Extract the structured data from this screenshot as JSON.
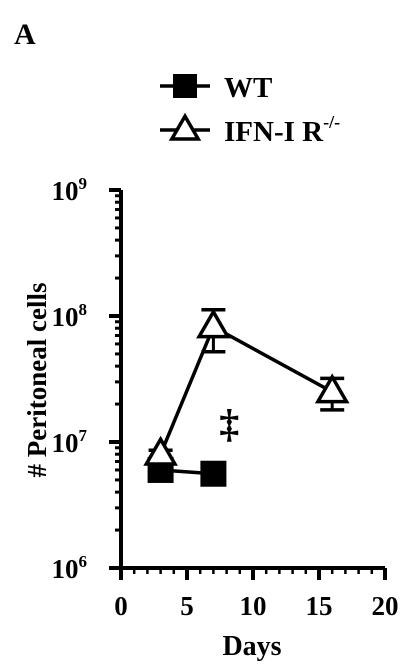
{
  "panel_label": "A",
  "chart_data": {
    "type": "line",
    "xlabel": "Days",
    "ylabel": "# Peritoneal cells",
    "xlim": [
      0,
      20
    ],
    "ylim": [
      1000000,
      1000000000
    ],
    "y_scale": "log",
    "x_ticks": [
      0,
      5,
      10,
      15,
      20
    ],
    "y_ticks": [
      {
        "value": 1000000,
        "base": "10",
        "exp": "6"
      },
      {
        "value": 10000000,
        "base": "10",
        "exp": "7"
      },
      {
        "value": 100000000,
        "base": "10",
        "exp": "8"
      },
      {
        "value": 1000000000,
        "base": "10",
        "exp": "9"
      }
    ],
    "legend_position": "top",
    "grid": false,
    "series": [
      {
        "name": "WT",
        "marker": "square",
        "x": [
          3,
          7
        ],
        "y": [
          6000000,
          5600000
        ],
        "err": [
          400000,
          300000
        ]
      },
      {
        "name": "IFN-I R",
        "name_sup": "-/-",
        "marker": "triangle",
        "x": [
          3,
          7,
          16
        ],
        "y": [
          8000000,
          82000000,
          25000000
        ],
        "err": [
          600000,
          30000000,
          7000000
        ]
      }
    ],
    "annotations": [
      {
        "text": "‡",
        "x": 8.2,
        "y": 11000000
      }
    ]
  }
}
